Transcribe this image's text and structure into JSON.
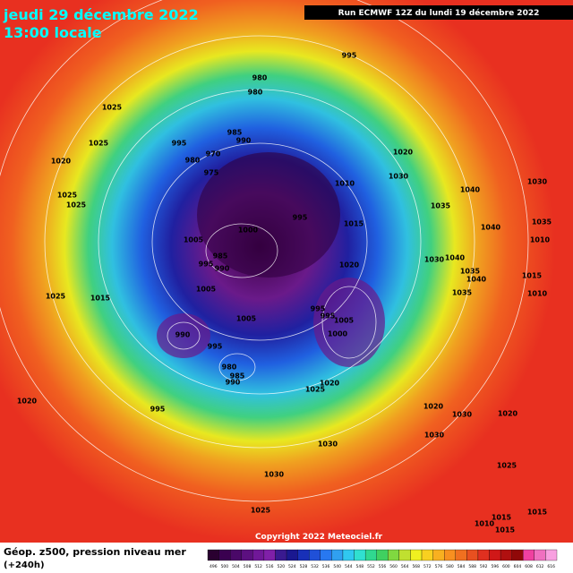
{
  "header": {
    "date": "jeudi 29 décembre 2022",
    "time": "13:00 locale",
    "run": "Run ECMWF 12Z du lundi 19 décembre 2022"
  },
  "footer": {
    "title": "Géop. z500, pression niveau mer",
    "lead": "(+240h)",
    "copyright": "Copyright 2022 Meteociel.fr"
  },
  "isobar_labels": [
    "995",
    "980",
    "980",
    "1025",
    "995",
    "985",
    "990",
    "970",
    "980",
    "975",
    "1025",
    "1020",
    "1010",
    "1020",
    "1030",
    "1040",
    "1035",
    "1030",
    "1025",
    "1025",
    "995",
    "1015",
    "1040",
    "1035",
    "1010",
    "1000",
    "1005",
    "985",
    "995",
    "990",
    "1020",
    "1030",
    "1040",
    "1035",
    "1040",
    "1015",
    "1010",
    "1025",
    "1015",
    "1005",
    "1035",
    "995",
    "995",
    "1005",
    "1005",
    "1000",
    "990",
    "995",
    "980",
    "985",
    "990",
    "1020",
    "1025",
    "1020",
    "995",
    "1020",
    "1030",
    "1020",
    "1030",
    "1030",
    "1030",
    "1025",
    "1025",
    "1015",
    "1010",
    "1015",
    "1015"
  ],
  "scale": [
    {
      "label": "496",
      "color": "#2a0030"
    },
    {
      "label": "500",
      "color": "#3a0050"
    },
    {
      "label": "504",
      "color": "#4a0868"
    },
    {
      "label": "508",
      "color": "#5c1080"
    },
    {
      "label": "512",
      "color": "#701898"
    },
    {
      "label": "516",
      "color": "#8020a8"
    },
    {
      "label": "520",
      "color": "#3a1a90"
    },
    {
      "label": "524",
      "color": "#1a1890"
    },
    {
      "label": "528",
      "color": "#1830b8"
    },
    {
      "label": "532",
      "color": "#2050d8"
    },
    {
      "label": "536",
      "color": "#2878f0"
    },
    {
      "label": "540",
      "color": "#30a0f0"
    },
    {
      "label": "544",
      "color": "#30c8f0"
    },
    {
      "label": "548",
      "color": "#30e0d0"
    },
    {
      "label": "552",
      "color": "#30d890"
    },
    {
      "label": "556",
      "color": "#40d060"
    },
    {
      "label": "560",
      "color": "#80d840"
    },
    {
      "label": "564",
      "color": "#c0e030"
    },
    {
      "label": "568",
      "color": "#f0f020"
    },
    {
      "label": "572",
      "color": "#f8d020"
    },
    {
      "label": "576",
      "color": "#f8b020"
    },
    {
      "label": "580",
      "color": "#f89020"
    },
    {
      "label": "584",
      "color": "#f07020"
    },
    {
      "label": "588",
      "color": "#e85020"
    },
    {
      "label": "592",
      "color": "#e03020"
    },
    {
      "label": "596",
      "color": "#d01818"
    },
    {
      "label": "600",
      "color": "#b01010"
    },
    {
      "label": "604",
      "color": "#900808"
    },
    {
      "label": "608",
      "color": "#f040a0"
    },
    {
      "label": "612",
      "color": "#f070c0"
    },
    {
      "label": "616",
      "color": "#f8a0e0"
    }
  ]
}
